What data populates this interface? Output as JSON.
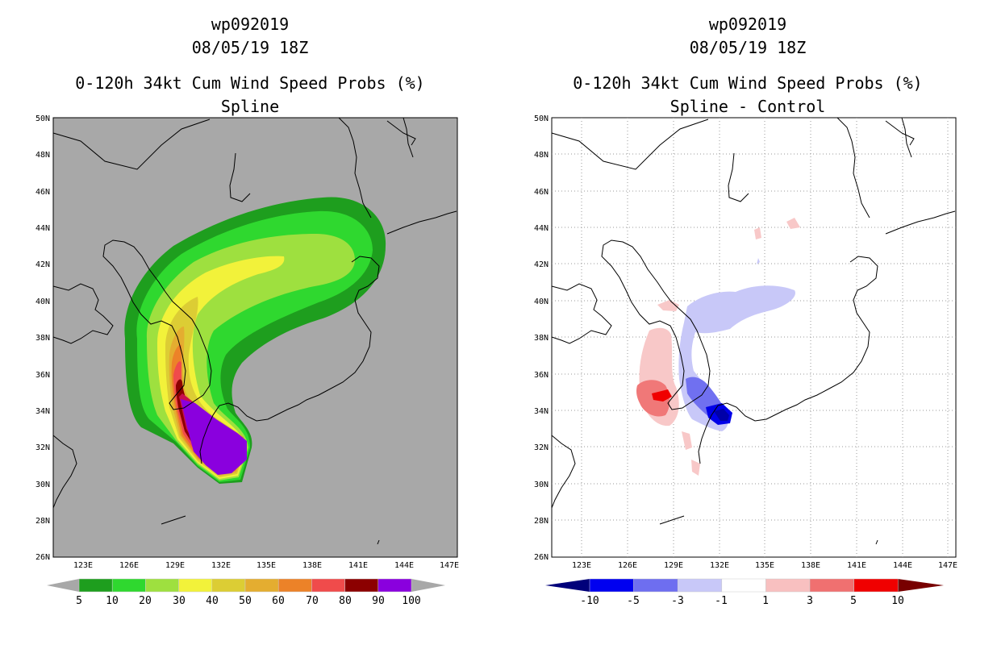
{
  "panels": [
    {
      "id": "left",
      "title_lines": [
        "wp092019",
        "08/05/19 18Z",
        "0-120h 34kt Cum Wind Speed Probs (%)",
        "Spline"
      ],
      "background": "#a8a8a8",
      "colorbar": {
        "labels": [
          "5",
          "10",
          "20",
          "30",
          "40",
          "50",
          "60",
          "70",
          "80",
          "90",
          "100"
        ],
        "colors": [
          "#1e9e1e",
          "#2fd82f",
          "#9ee03f",
          "#f2f23a",
          "#dccd34",
          "#e4ad30",
          "#ec8228",
          "#f04b4b",
          "#8c0000",
          "#8a00de"
        ]
      }
    },
    {
      "id": "right",
      "title_lines": [
        "wp092019",
        "08/05/19 18Z",
        "0-120h 34kt Cum Wind Speed Probs (%)",
        "Spline - Control"
      ],
      "background": "#ffffff",
      "colorbar": {
        "labels": [
          "-10",
          "-5",
          "-3",
          "-1",
          "1",
          "3",
          "5",
          "10"
        ],
        "colors": [
          "#0000c8",
          "#0000f0",
          "#6e6ef0",
          "#c8c8f8",
          "#ffffff",
          "#f8c0c0",
          "#f07070",
          "#f00000",
          "#780000"
        ]
      }
    }
  ],
  "axes": {
    "lat_labels": [
      "50N",
      "48N",
      "46N",
      "44N",
      "42N",
      "40N",
      "38N",
      "36N",
      "34N",
      "32N",
      "30N",
      "28N",
      "26N"
    ],
    "lon_labels": [
      "123E",
      "126E",
      "129E",
      "132E",
      "135E",
      "138E",
      "141E",
      "144E",
      "147E"
    ]
  },
  "map_data": {
    "storm_id": "wp092019",
    "domain": {
      "lon_range": [
        120,
        148
      ],
      "lat_range": [
        26,
        50
      ]
    },
    "product": "0-120h 34kt cumulative wind speed probabilities"
  }
}
